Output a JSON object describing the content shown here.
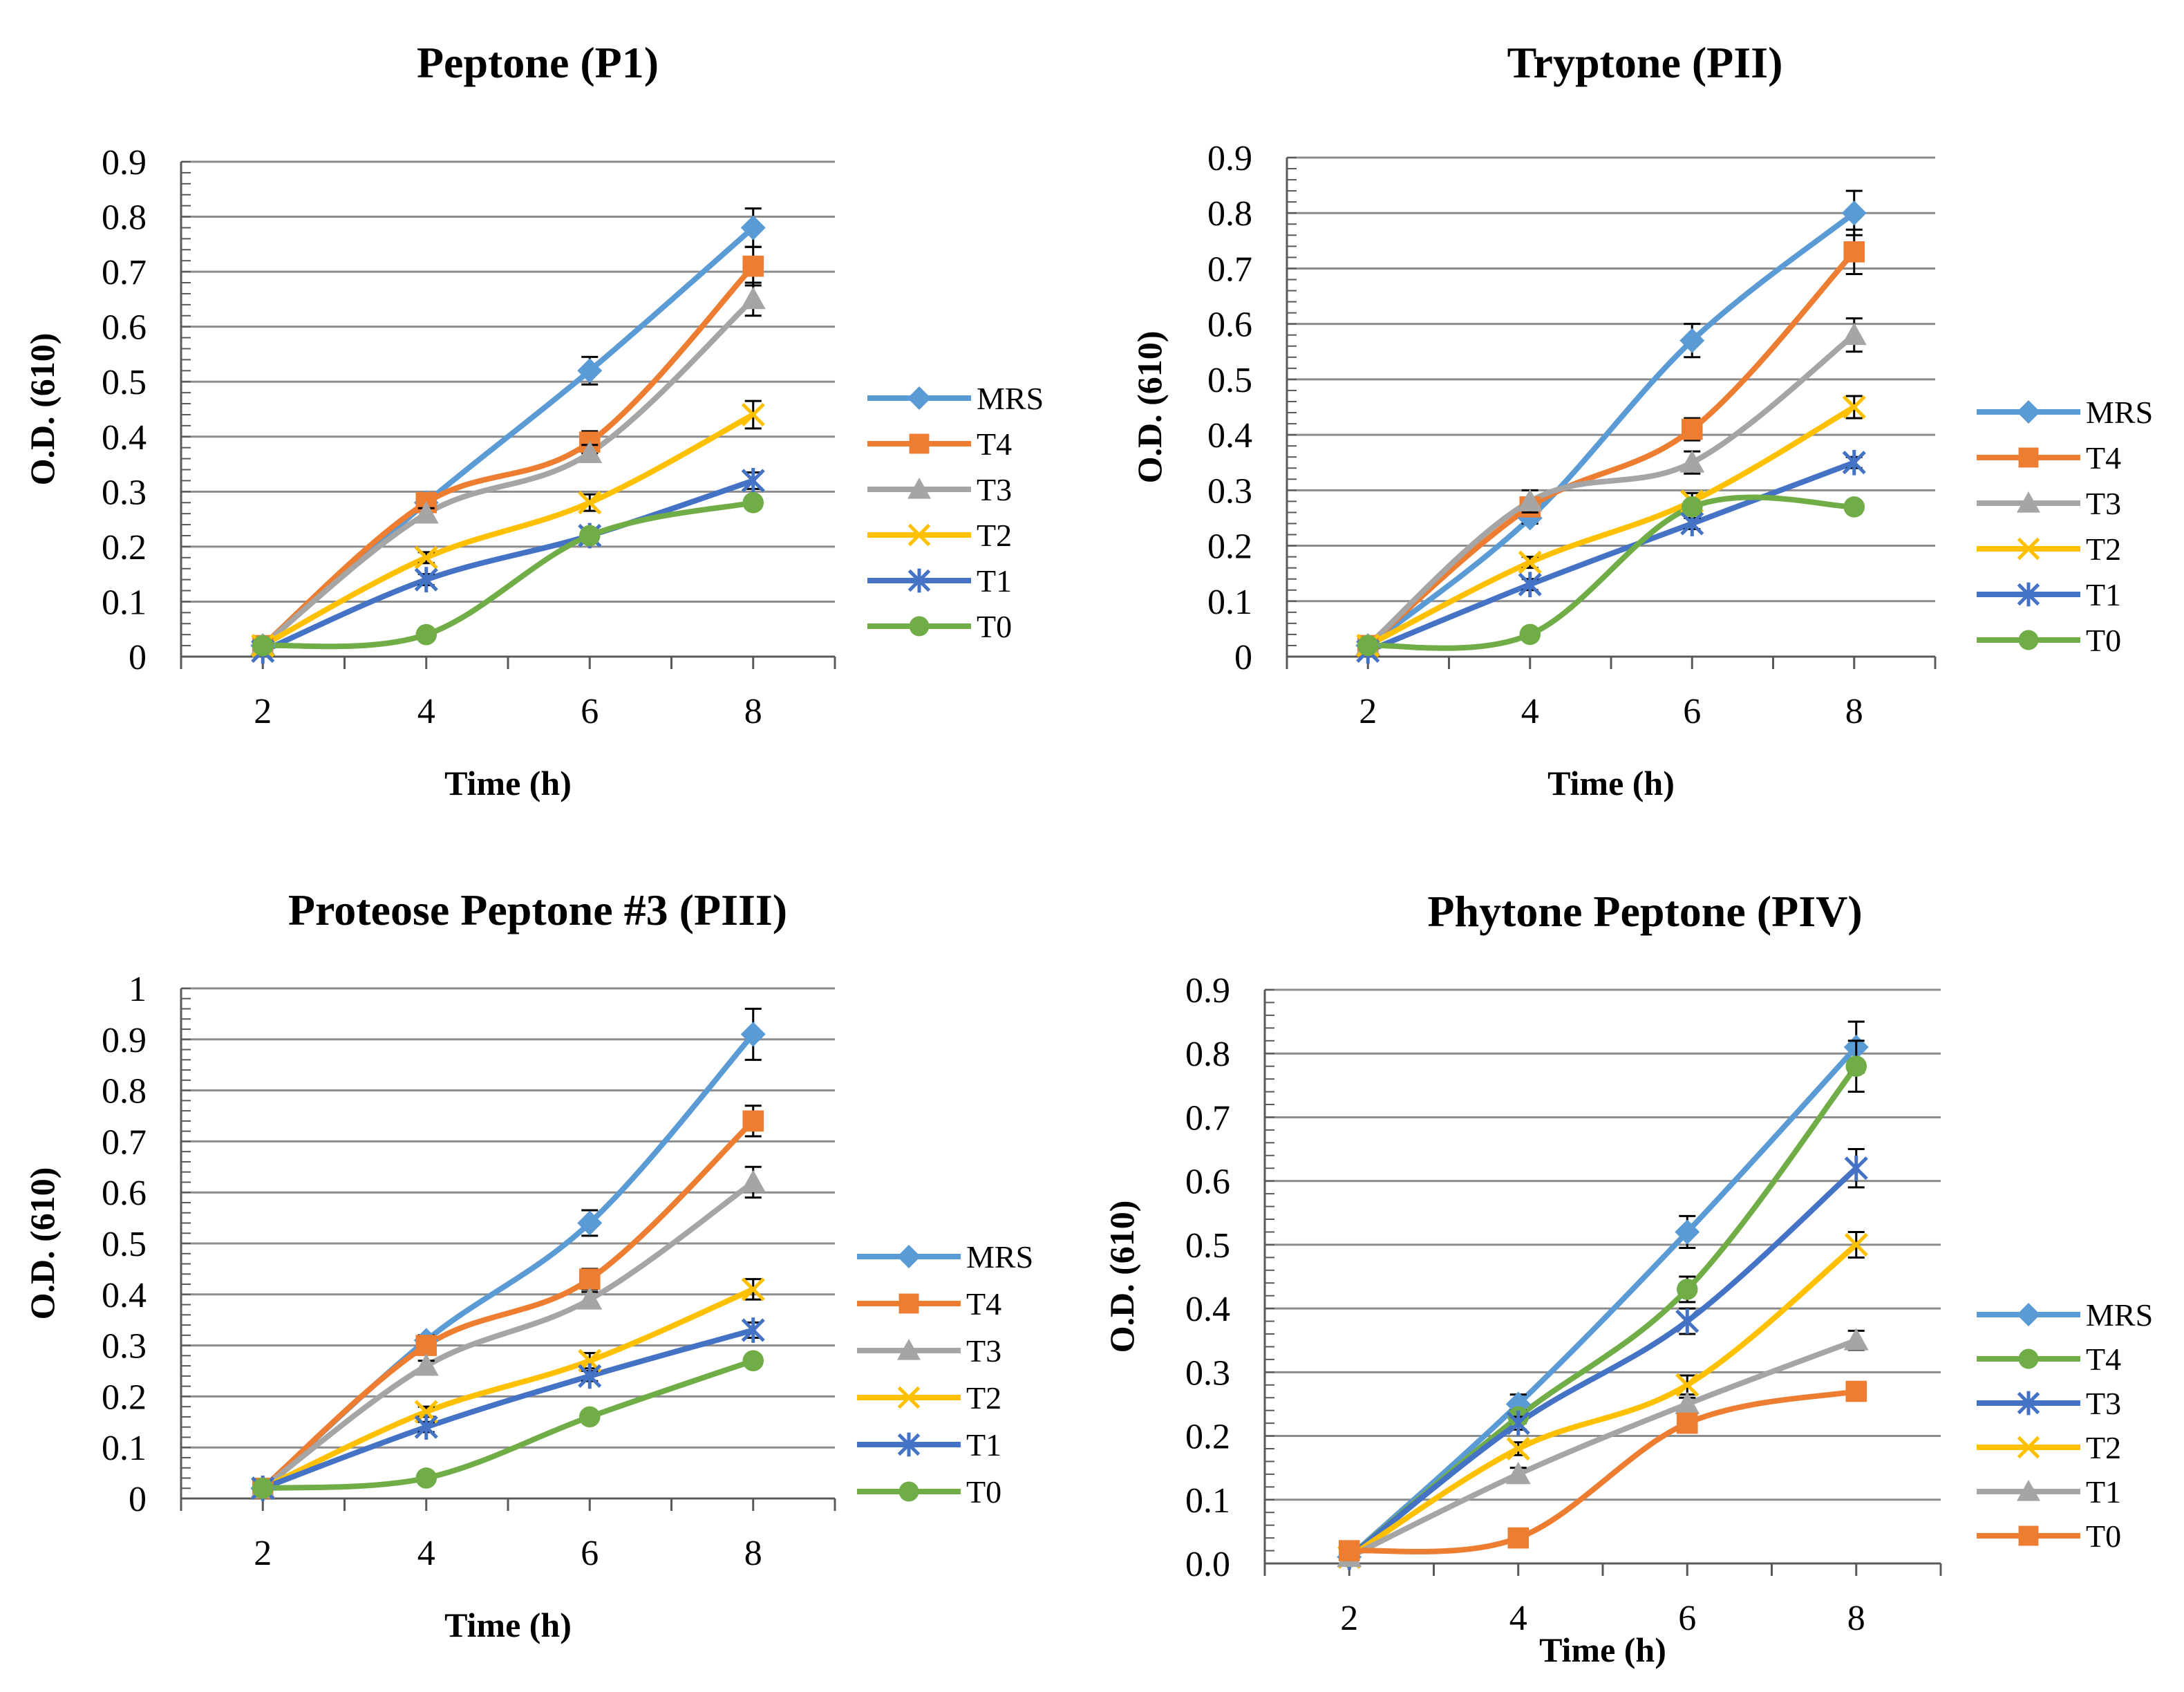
{
  "colors": {
    "blue": "#5B9BD5",
    "orange": "#ED7D31",
    "gray": "#A5A5A5",
    "yellow": "#FFC000",
    "darkblue": "#4472C4",
    "green": "#70AD47",
    "grid": "#8C8C8C",
    "axis": "#595959",
    "errorbar": "#000000"
  },
  "chart_data": [
    {
      "type": "line",
      "title": "Peptone (P1)",
      "xlabel": "Time (h)",
      "ylabel": "O.D. (610)",
      "x": [
        2,
        4,
        6,
        8
      ],
      "xlim": [
        1,
        9
      ],
      "ylim": [
        0,
        0.9
      ],
      "yticks": [
        "0",
        "0.1",
        "0.2",
        "0.3",
        "0.4",
        "0.5",
        "0.6",
        "0.7",
        "0.8",
        "0.9"
      ],
      "grid": true,
      "legend_position": "right",
      "series": [
        {
          "name": "MRS",
          "values": [
            0.02,
            0.28,
            0.52,
            0.78
          ],
          "errors": [
            0,
            0,
            0.025,
            0.035
          ],
          "color": "blue",
          "marker": "diamond"
        },
        {
          "name": "T4",
          "values": [
            0.02,
            0.28,
            0.39,
            0.71
          ],
          "errors": [
            0,
            0.01,
            0.02,
            0.035
          ],
          "color": "orange",
          "marker": "square"
        },
        {
          "name": "T3",
          "values": [
            0.02,
            0.26,
            0.37,
            0.65
          ],
          "errors": [
            0,
            0.01,
            0.015,
            0.03
          ],
          "color": "gray",
          "marker": "triangle"
        },
        {
          "name": "T2",
          "values": [
            0.02,
            0.18,
            0.28,
            0.44
          ],
          "errors": [
            0,
            0.01,
            0.015,
            0.025
          ],
          "color": "yellow",
          "marker": "x"
        },
        {
          "name": "T1",
          "values": [
            0.01,
            0.14,
            0.22,
            0.32
          ],
          "errors": [
            0,
            0.01,
            0.01,
            0.015
          ],
          "color": "darkblue",
          "marker": "star"
        },
        {
          "name": "T0",
          "values": [
            0.02,
            0.04,
            0.22,
            0.28
          ],
          "errors": [
            0,
            0,
            0.01,
            0.01
          ],
          "color": "green",
          "marker": "circle"
        }
      ]
    },
    {
      "type": "line",
      "title": "Tryptone (PII)",
      "xlabel": "Time (h)",
      "ylabel": "O.D. (610)",
      "x": [
        2,
        4,
        6,
        8
      ],
      "xlim": [
        1,
        9
      ],
      "ylim": [
        0,
        0.9
      ],
      "yticks": [
        "0",
        "0.1",
        "0.2",
        "0.3",
        "0.4",
        "0.5",
        "0.6",
        "0.7",
        "0.8",
        "0.9"
      ],
      "grid": true,
      "legend_position": "right",
      "series": [
        {
          "name": "MRS",
          "values": [
            0.02,
            0.25,
            0.57,
            0.8
          ],
          "errors": [
            0,
            0.01,
            0.03,
            0.04
          ],
          "color": "blue",
          "marker": "diamond"
        },
        {
          "name": "T4",
          "values": [
            0.02,
            0.27,
            0.41,
            0.73
          ],
          "errors": [
            0,
            0.01,
            0.02,
            0.04
          ],
          "color": "orange",
          "marker": "square"
        },
        {
          "name": "T3",
          "values": [
            0.02,
            0.28,
            0.35,
            0.58
          ],
          "errors": [
            0,
            0.02,
            0.02,
            0.03
          ],
          "color": "gray",
          "marker": "triangle"
        },
        {
          "name": "T2",
          "values": [
            0.02,
            0.17,
            0.28,
            0.45
          ],
          "errors": [
            0,
            0.01,
            0.015,
            0.02
          ],
          "color": "yellow",
          "marker": "x"
        },
        {
          "name": "T1",
          "values": [
            0.01,
            0.13,
            0.24,
            0.35
          ],
          "errors": [
            0,
            0.01,
            0.01,
            0.01
          ],
          "color": "darkblue",
          "marker": "star"
        },
        {
          "name": "T0",
          "values": [
            0.02,
            0.04,
            0.27,
            0.27
          ],
          "errors": [
            0,
            0,
            0.01,
            0.01
          ],
          "color": "green",
          "marker": "circle"
        }
      ]
    },
    {
      "type": "line",
      "title": "Proteose Peptone #3 (PIII)",
      "xlabel": "Time (h)",
      "ylabel": "O.D. (610)",
      "x": [
        2,
        4,
        6,
        8
      ],
      "xlim": [
        1,
        9
      ],
      "ylim": [
        0,
        1
      ],
      "yticks": [
        "0",
        "0.1",
        "0.2",
        "0.3",
        "0.4",
        "0.5",
        "0.6",
        "0.7",
        "0.8",
        "0.9",
        "1"
      ],
      "grid": true,
      "legend_position": "right",
      "series": [
        {
          "name": "MRS",
          "values": [
            0.02,
            0.31,
            0.54,
            0.91
          ],
          "errors": [
            0,
            0.01,
            0.025,
            0.05
          ],
          "color": "blue",
          "marker": "diamond"
        },
        {
          "name": "T4",
          "values": [
            0.02,
            0.3,
            0.43,
            0.74
          ],
          "errors": [
            0,
            0.01,
            0.02,
            0.03
          ],
          "color": "orange",
          "marker": "square"
        },
        {
          "name": "T3",
          "values": [
            0.02,
            0.26,
            0.39,
            0.62
          ],
          "errors": [
            0,
            0.01,
            0.015,
            0.03
          ],
          "color": "gray",
          "marker": "triangle"
        },
        {
          "name": "T2",
          "values": [
            0.02,
            0.17,
            0.27,
            0.41
          ],
          "errors": [
            0,
            0.01,
            0.015,
            0.02
          ],
          "color": "yellow",
          "marker": "x"
        },
        {
          "name": "T1",
          "values": [
            0.02,
            0.14,
            0.24,
            0.33
          ],
          "errors": [
            0,
            0.01,
            0.01,
            0.015
          ],
          "color": "darkblue",
          "marker": "star"
        },
        {
          "name": "T0",
          "values": [
            0.02,
            0.04,
            0.16,
            0.27
          ],
          "errors": [
            0,
            0,
            0.01,
            0.01
          ],
          "color": "green",
          "marker": "circle"
        }
      ]
    },
    {
      "type": "line",
      "title": "Phytone Peptone (PIV)",
      "xlabel": "Time (h)",
      "ylabel": "O.D. (610)",
      "x": [
        2,
        4,
        6,
        8
      ],
      "xlim": [
        1,
        9
      ],
      "ylim": [
        0,
        0.9
      ],
      "yticks": [
        "0.0",
        "0.1",
        "0.2",
        "0.3",
        "0.4",
        "0.5",
        "0.6",
        "0.7",
        "0.8",
        "0.9"
      ],
      "grid": true,
      "legend_position": "right",
      "series": [
        {
          "name": "MRS",
          "values": [
            0.01,
            0.25,
            0.52,
            0.81
          ],
          "errors": [
            0,
            0.015,
            0.025,
            0.04
          ],
          "color": "blue",
          "marker": "diamond"
        },
        {
          "name": "T4",
          "values": [
            0.01,
            0.23,
            0.43,
            0.78
          ],
          "errors": [
            0,
            0.01,
            0.02,
            0.04
          ],
          "color": "green",
          "marker": "circle"
        },
        {
          "name": "T3",
          "values": [
            0.01,
            0.22,
            0.38,
            0.62
          ],
          "errors": [
            0,
            0.01,
            0.02,
            0.03
          ],
          "color": "darkblue",
          "marker": "star"
        },
        {
          "name": "T2",
          "values": [
            0.01,
            0.18,
            0.28,
            0.5
          ],
          "errors": [
            0,
            0.01,
            0.015,
            0.02
          ],
          "color": "yellow",
          "marker": "x"
        },
        {
          "name": "T1",
          "values": [
            0.01,
            0.14,
            0.25,
            0.35
          ],
          "errors": [
            0,
            0.01,
            0.01,
            0.015
          ],
          "color": "gray",
          "marker": "triangle"
        },
        {
          "name": "T0",
          "values": [
            0.02,
            0.04,
            0.22,
            0.27
          ],
          "errors": [
            0,
            0,
            0.01,
            0.01
          ],
          "color": "orange",
          "marker": "square"
        }
      ]
    }
  ]
}
